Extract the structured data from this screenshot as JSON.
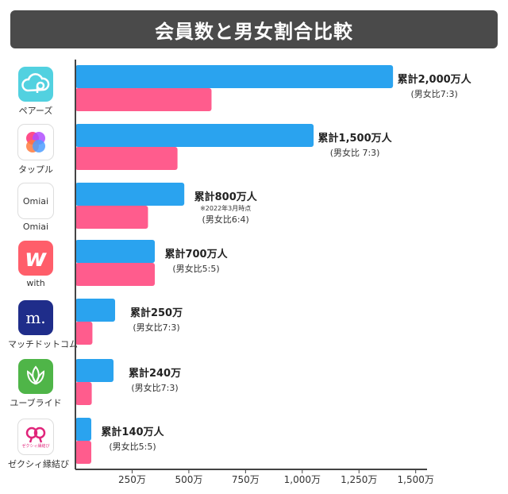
{
  "title": "会員数と男女割合比較",
  "apps": [
    {
      "name": "ペアーズ",
      "icon": "pairs-icon",
      "color": "#52d1e0"
    },
    {
      "name": "タップル",
      "icon": "tapple-icon",
      "color": "#ffffff"
    },
    {
      "name": "Omiai",
      "icon": "omiai-icon",
      "color": "#ffffff",
      "icon_text": "Omiai"
    },
    {
      "name": "with",
      "icon": "with-icon",
      "color": "#ff5e6a",
      "icon_text": "w"
    },
    {
      "name": "マッチドットコム",
      "icon": "match-icon",
      "color": "#1f2d8a",
      "icon_text": "m."
    },
    {
      "name": "ユーブライド",
      "icon": "youbride-icon",
      "color": "#4fb548"
    },
    {
      "name": "ゼクシィ縁結び",
      "icon": "zexy-icon",
      "color": "#ffffff",
      "icon_text": "ゼクシィ縁結び"
    }
  ],
  "chart_data": {
    "type": "bar",
    "orientation": "horizontal",
    "title": "会員数と男女割合比較",
    "categories": [
      "ペアーズ",
      "タップル",
      "Omiai",
      "with",
      "マッチドットコム",
      "ユーブライド",
      "ゼクシィ縁結び"
    ],
    "series": [
      {
        "color": "#2aa3ef",
        "values": [
          1400,
          1050,
          480,
          350,
          175,
          168,
          70
        ]
      },
      {
        "color": "#ff5c8d",
        "values": [
          600,
          450,
          320,
          350,
          75,
          72,
          70
        ]
      }
    ],
    "xlim": [
      0,
      1550
    ],
    "xticks": [
      250,
      500,
      750,
      1000,
      1250,
      1500
    ],
    "xtick_labels": [
      "250万",
      "500万",
      "750万",
      "1,000万",
      "1,250万",
      "1,500万"
    ],
    "annotations": [
      {
        "total": "累計2,000万人",
        "note": "",
        "ratio": "(男女比7:3)"
      },
      {
        "total": "累計1,500万人",
        "note": "",
        "ratio": "(男女比 7:3)"
      },
      {
        "total": "累計800万人",
        "note": "※2022年3月時点",
        "ratio": "(男女比6:4)"
      },
      {
        "total": "累計700万人",
        "note": "",
        "ratio": "(男女比5:5)"
      },
      {
        "total": "累計250万",
        "note": "",
        "ratio": "(男女比7:3)"
      },
      {
        "total": "累計240万",
        "note": "",
        "ratio": "(男女比7:3)"
      },
      {
        "total": "累計140万人",
        "note": "",
        "ratio": "(男女比5:5)"
      }
    ],
    "grid": false,
    "legend": "none"
  }
}
